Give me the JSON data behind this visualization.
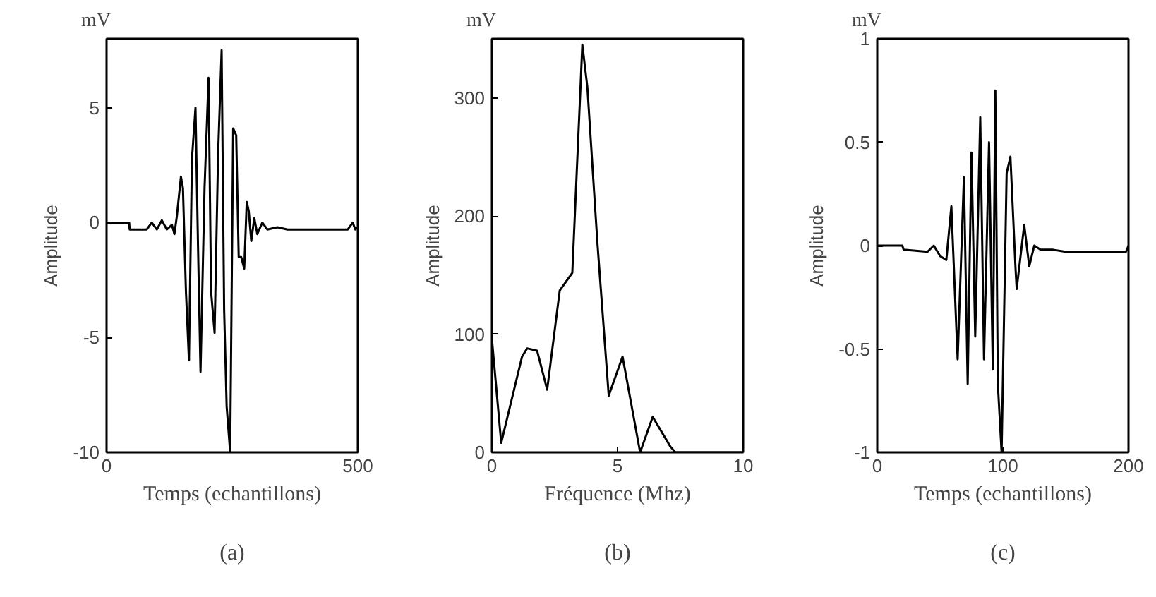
{
  "chart_data": [
    {
      "type": "line",
      "subtitle": "mV",
      "ylabel": "Amplitude",
      "xlabel": "Temps (echantillons)",
      "annotations": [
        "(a)"
      ],
      "xlim": [
        0,
        500
      ],
      "xticks": [
        0,
        500
      ],
      "ylim": [
        -10,
        8
      ],
      "yticks": [
        -10,
        -5,
        0,
        5
      ],
      "series": [
        {
          "color": "#000000",
          "x": [
            0,
            45,
            46,
            80,
            90,
            100,
            110,
            120,
            130,
            135,
            140,
            148,
            152,
            158,
            164,
            170,
            177,
            182,
            187,
            195,
            203,
            208,
            215,
            222,
            229,
            234,
            239,
            246,
            252,
            258,
            263,
            268,
            274,
            279,
            283,
            288,
            294,
            300,
            310,
            320,
            340,
            360,
            400,
            440,
            480,
            490,
            495,
            500
          ],
          "values": [
            0,
            0,
            -0.3,
            -0.3,
            0,
            -0.3,
            0.1,
            -0.3,
            -0.1,
            -0.5,
            0.3,
            2.0,
            1.5,
            -3,
            -6.0,
            2.8,
            5.0,
            -1,
            -6.5,
            1.5,
            6.3,
            -3,
            -4.8,
            3,
            7.5,
            -3.8,
            -8,
            -10,
            4.1,
            3.8,
            -1.5,
            -1.5,
            -2.0,
            0.9,
            0.5,
            -0.8,
            0.2,
            -0.5,
            0,
            -0.3,
            -0.2,
            -0.3,
            -0.3,
            -0.3,
            -0.3,
            0,
            -0.3,
            -0.2
          ]
        }
      ]
    },
    {
      "type": "line",
      "subtitle": "mV",
      "ylabel": "Amplitude",
      "xlabel": "Fréquence (Mhz)",
      "annotations": [
        "(b)"
      ],
      "xlim": [
        0,
        10
      ],
      "xticks": [
        0,
        5,
        10
      ],
      "ylim": [
        0,
        350
      ],
      "yticks": [
        0,
        100,
        200,
        300
      ],
      "series": [
        {
          "color": "#000000",
          "x": [
            0,
            0.37,
            1.2,
            1.4,
            1.8,
            2.2,
            2.7,
            3.2,
            3.6,
            3.8,
            4.2,
            4.65,
            5.2,
            5.9,
            6.4,
            7.1,
            7.3,
            10
          ],
          "values": [
            96,
            8,
            81,
            88,
            86,
            53,
            137,
            152,
            345,
            309,
            177,
            48,
            81,
            0,
            30,
            5,
            0,
            0
          ]
        }
      ]
    },
    {
      "type": "line",
      "subtitle": "mV",
      "ylabel": "Amplitude",
      "xlabel": "Temps (echantillons)",
      "annotations": [
        "(c)"
      ],
      "xlim": [
        0,
        200
      ],
      "xticks": [
        0,
        100,
        200
      ],
      "ylim": [
        -1,
        1
      ],
      "yticks": [
        -1,
        -0.5,
        0,
        0.5,
        1
      ],
      "series": [
        {
          "color": "#000000",
          "x": [
            0,
            20,
            21,
            40,
            45,
            50,
            55,
            59,
            64,
            69,
            72,
            75,
            78,
            82,
            85,
            89,
            92,
            94,
            96,
            99,
            103,
            106,
            110,
            111,
            117,
            121,
            125,
            130,
            140,
            150,
            198,
            200
          ],
          "values": [
            0,
            0,
            -0.02,
            -0.03,
            0.0,
            -0.05,
            -0.07,
            0.19,
            -0.55,
            0.33,
            -0.67,
            0.45,
            -0.44,
            0.62,
            -0.55,
            0.5,
            -0.6,
            0.75,
            -0.67,
            -1.0,
            0.35,
            0.43,
            -0.1,
            -0.21,
            0.1,
            -0.1,
            0.0,
            -0.02,
            -0.02,
            -0.03,
            -0.03,
            0
          ]
        }
      ]
    }
  ]
}
